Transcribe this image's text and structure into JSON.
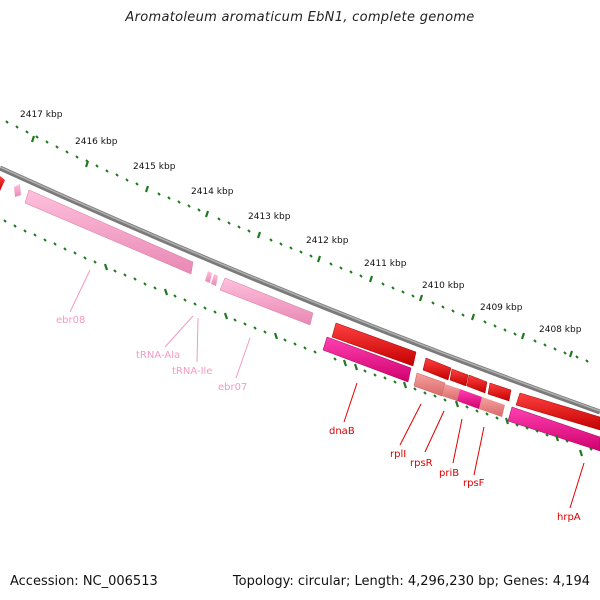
{
  "header": {
    "title": "Aromatoleum aromaticum EbN1, complete genome"
  },
  "footer": {
    "accession": "Accession: NC_006513",
    "topology": "Topology: circular; Length: 4,296,230 bp; Genes: 4,194"
  },
  "ruler": {
    "labels": [
      "2417 kbp",
      "2416 kbp",
      "2415 kbp",
      "2414 kbp",
      "2413 kbp",
      "2412 kbp",
      "2411 kbp",
      "2410 kbp",
      "2409 kbp",
      "2408 kbp"
    ]
  },
  "genes": [
    {
      "name": "ebr08",
      "color": "#f39ac3"
    },
    {
      "name": "tRNA-Ala",
      "color": "#f39ac3"
    },
    {
      "name": "tRNA-Ile",
      "color": "#f39ac3"
    },
    {
      "name": "ebr07",
      "color": "#f39ac3"
    },
    {
      "name": "dnaB",
      "color": "#e00000"
    },
    {
      "name": "rplI",
      "color": "#e00000"
    },
    {
      "name": "rpsR",
      "color": "#e00000"
    },
    {
      "name": "priB",
      "color": "#e00000"
    },
    {
      "name": "rpsF",
      "color": "#e00000"
    },
    {
      "name": "hrpA",
      "color": "#e00000"
    }
  ],
  "colors": {
    "backbone": "#888888",
    "tick": "#1f7a1f",
    "forward_cds": "#ff0000",
    "reverse_cds": "#ff1a9a",
    "rna": "#ffa6c9",
    "pale_cds": "#f08a8a"
  }
}
